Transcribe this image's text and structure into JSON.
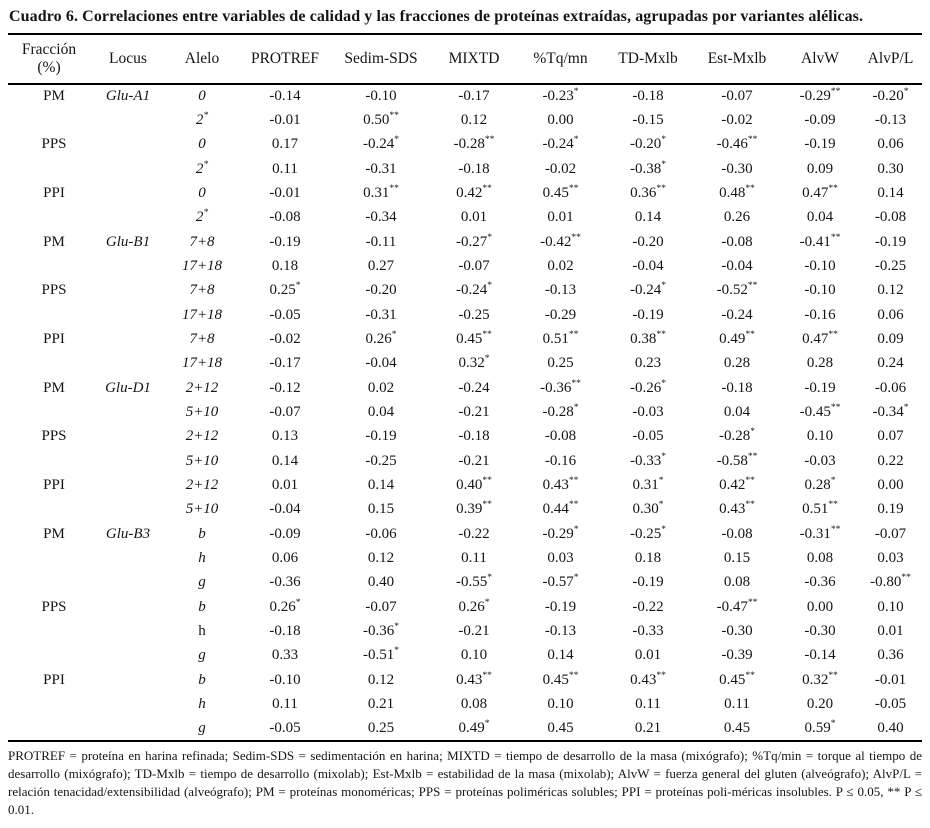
{
  "title": "Cuadro 6. Correlaciones entre variables de calidad y las fracciones de proteínas extraídas, agrupadas por variantes alélicas.",
  "table": {
    "columns": [
      {
        "label": "Fracción",
        "sub": "(%)"
      },
      {
        "label": "Locus"
      },
      {
        "label": "Alelo"
      },
      {
        "label": "PROTREF"
      },
      {
        "label": "Sedim-SDS"
      },
      {
        "label": "MIXTD"
      },
      {
        "label": "%Tq/mn"
      },
      {
        "label": "TD-Mxlb"
      },
      {
        "label": "Est-Mxlb"
      },
      {
        "label": "AlvW"
      },
      {
        "label": "AlvP/L"
      }
    ],
    "rows": [
      {
        "fraction": "PM",
        "locus": "Glu-A1",
        "allele": "0",
        "values": [
          "-0.14",
          "-0.10",
          "-0.17",
          "-0.23*",
          "-0.18",
          "-0.07",
          "-0.29**",
          "-0.20*"
        ]
      },
      {
        "fraction": "",
        "locus": "",
        "allele": "2*",
        "values": [
          "-0.01",
          "0.50**",
          "0.12",
          "0.00",
          "-0.15",
          "-0.02",
          "-0.09",
          "-0.13"
        ]
      },
      {
        "fraction": "PPS",
        "locus": "",
        "allele": "0",
        "values": [
          "0.17",
          "-0.24*",
          "-0.28**",
          "-0.24*",
          "-0.20*",
          "-0.46**",
          "-0.19",
          "0.06"
        ]
      },
      {
        "fraction": "",
        "locus": "",
        "allele": "2*",
        "values": [
          "0.11",
          "-0.31",
          "-0.18",
          "-0.02",
          "-0.38*",
          "-0.30",
          "0.09",
          "0.30"
        ]
      },
      {
        "fraction": "PPI",
        "locus": "",
        "allele": "0",
        "values": [
          "-0.01",
          "0.31**",
          "0.42**",
          "0.45**",
          "0.36**",
          "0.48**",
          "0.47**",
          "0.14"
        ]
      },
      {
        "fraction": "",
        "locus": "",
        "allele": "2*",
        "values": [
          "-0.08",
          "-0.34",
          "0.01",
          "0.01",
          "0.14",
          "0.26",
          "0.04",
          "-0.08"
        ]
      },
      {
        "fraction": "PM",
        "locus": "Glu-B1",
        "allele": "7+8",
        "values": [
          "-0.19",
          "-0.11",
          "-0.27*",
          "-0.42**",
          "-0.20",
          "-0.08",
          "-0.41**",
          "-0.19"
        ]
      },
      {
        "fraction": "",
        "locus": "",
        "allele": "17+18",
        "values": [
          "0.18",
          "0.27",
          "-0.07",
          "0.02",
          "-0.04",
          "-0.04",
          "-0.10",
          "-0.25"
        ]
      },
      {
        "fraction": "PPS",
        "locus": "",
        "allele": "7+8",
        "values": [
          "0.25*",
          "-0.20",
          "-0.24*",
          "-0.13",
          "-0.24*",
          "-0.52**",
          "-0.10",
          "0.12"
        ]
      },
      {
        "fraction": "",
        "locus": "",
        "allele": "17+18",
        "values": [
          "-0.05",
          "-0.31",
          "-0.25",
          "-0.29",
          "-0.19",
          "-0.24",
          "-0.16",
          "0.06"
        ]
      },
      {
        "fraction": "PPI",
        "locus": "",
        "allele": "7+8",
        "values": [
          "-0.02",
          "0.26*",
          "0.45**",
          "0.51**",
          "0.38**",
          "0.49**",
          "0.47**",
          "0.09"
        ]
      },
      {
        "fraction": "",
        "locus": "",
        "allele": "17+18",
        "values": [
          "-0.17",
          "-0.04",
          "0.32*",
          "0.25",
          "0.23",
          "0.28",
          "0.28",
          "0.24"
        ]
      },
      {
        "fraction": "PM",
        "locus": "Glu-D1",
        "allele": "2+12",
        "values": [
          "-0.12",
          "0.02",
          "-0.24",
          "-0.36**",
          "-0.26*",
          "-0.18",
          "-0.19",
          "-0.06"
        ]
      },
      {
        "fraction": "",
        "locus": "",
        "allele": "5+10",
        "values": [
          "-0.07",
          "0.04",
          "-0.21",
          "-0.28*",
          "-0.03",
          "0.04",
          "-0.45**",
          "-0.34*"
        ]
      },
      {
        "fraction": "PPS",
        "locus": "",
        "allele": "2+12",
        "values": [
          "0.13",
          "-0.19",
          "-0.18",
          "-0.08",
          "-0.05",
          "-0.28*",
          "0.10",
          "0.07"
        ]
      },
      {
        "fraction": "",
        "locus": "",
        "allele": "5+10",
        "values": [
          "0.14",
          "-0.25",
          "-0.21",
          "-0.16",
          "-0.33*",
          "-0.58**",
          "-0.03",
          "0.22"
        ]
      },
      {
        "fraction": "PPI",
        "locus": "",
        "allele": "2+12",
        "values": [
          "0.01",
          "0.14",
          "0.40**",
          "0.43**",
          "0.31*",
          "0.42**",
          "0.28*",
          "0.00"
        ]
      },
      {
        "fraction": "",
        "locus": "",
        "allele": "5+10",
        "values": [
          "-0.04",
          "0.15",
          "0.39**",
          "0.44**",
          "0.30*",
          "0.43**",
          "0.51**",
          "0.19"
        ]
      },
      {
        "fraction": "PM",
        "locus": "Glu-B3",
        "allele": "b",
        "values": [
          "-0.09",
          "-0.06",
          "-0.22",
          "-0.29*",
          "-0.25*",
          "-0.08",
          "-0.31**",
          "-0.07"
        ]
      },
      {
        "fraction": "",
        "locus": "",
        "allele": "h",
        "values": [
          "0.06",
          "0.12",
          "0.11",
          "0.03",
          "0.18",
          "0.15",
          "0.08",
          "0.03"
        ]
      },
      {
        "fraction": "",
        "locus": "",
        "allele": "g",
        "values": [
          "-0.36",
          "0.40",
          "-0.55*",
          "-0.57*",
          "-0.19",
          "0.08",
          "-0.36",
          "-0.80**"
        ]
      },
      {
        "fraction": "PPS",
        "locus": "",
        "allele": "b",
        "values": [
          "0.26*",
          "-0.07",
          "0.26*",
          "-0.19",
          "-0.22",
          "-0.47**",
          "0.00",
          "0.10"
        ]
      },
      {
        "fraction": "",
        "locus": "",
        "allele": "h",
        "allele_upright": true,
        "values": [
          "-0.18",
          "-0.36*",
          "-0.21",
          "-0.13",
          "-0.33",
          "-0.30",
          "-0.30",
          "0.01"
        ]
      },
      {
        "fraction": "",
        "locus": "",
        "allele": "g",
        "values": [
          "0.33",
          "-0.51*",
          "0.10",
          "0.14",
          "0.01",
          "-0.39",
          "-0.14",
          "0.36"
        ]
      },
      {
        "fraction": "PPI",
        "locus": "",
        "allele": "b",
        "values": [
          "-0.10",
          "0.12",
          "0.43**",
          "0.45**",
          "0.43**",
          "0.45**",
          "0.32**",
          "-0.01"
        ]
      },
      {
        "fraction": "",
        "locus": "",
        "allele": "h",
        "values": [
          "0.11",
          "0.21",
          "0.08",
          "0.10",
          "0.11",
          "0.11",
          "0.20",
          "-0.05"
        ]
      },
      {
        "fraction": "",
        "locus": "",
        "allele": "g",
        "values": [
          "-0.05",
          "0.25",
          "0.49*",
          "0.45",
          "0.21",
          "0.45",
          "0.59*",
          "0.40"
        ]
      }
    ]
  },
  "footnote": "PROTREF = proteína en harina refinada; Sedim-SDS = sedimentación en harina; MIXTD = tiempo de desarrollo de la masa (mixógrafo); %Tq/min = torque al tiempo de desarrollo (mixógrafo); TD-Mxlb = tiempo de desarrollo (mixolab); Est-Mxlb = estabilidad de la masa (mixolab); AlvW = fuerza general del gluten (alveógrafo); AlvP/L = relación tenacidad/extensibilidad (alveógrafo); PM = proteínas monoméricas; PPS = proteínas poliméricas solubles; PPI = proteínas poli-méricas insolubles. P ≤ 0.05, ** P ≤ 0.01."
}
